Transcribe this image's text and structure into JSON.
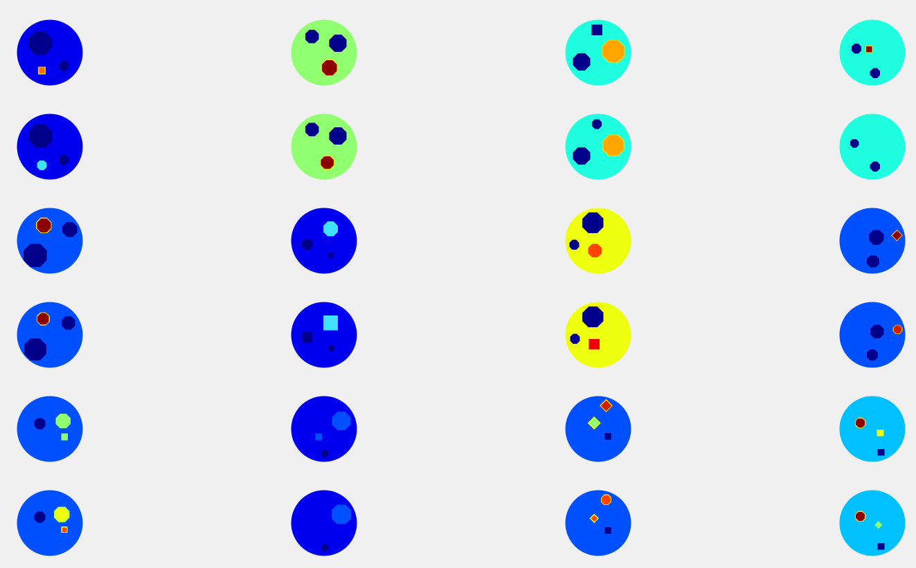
{
  "figure": {
    "rows": 6,
    "cols": 4,
    "panels": [
      {
        "name": "panel-r1-c1",
        "bg": "#0000ee",
        "blobs": [
          {
            "shape": "oct",
            "color": "#00008b",
            "fx": 0.36,
            "fy": 0.36,
            "fr": 0.19
          },
          {
            "shape": "sq",
            "color": "#ff6a00",
            "fx": 0.38,
            "fy": 0.77,
            "fr": 0.05,
            "edge": "#ffd700"
          },
          {
            "shape": "oct",
            "color": "#00008b",
            "fx": 0.71,
            "fy": 0.7,
            "fr": 0.08
          }
        ]
      },
      {
        "name": "panel-r1-c2",
        "bg": "#90ff70",
        "blobs": [
          {
            "shape": "oct",
            "color": "#00008b",
            "fx": 0.32,
            "fy": 0.26,
            "fr": 0.11
          },
          {
            "shape": "oct",
            "color": "#00008b",
            "fx": 0.71,
            "fy": 0.36,
            "fr": 0.14
          },
          {
            "shape": "oct",
            "color": "#8b0000",
            "fx": 0.58,
            "fy": 0.73,
            "fr": 0.13,
            "edge": "#ffd700"
          }
        ]
      },
      {
        "name": "panel-r1-c3",
        "bg": "#1fffe0",
        "blobs": [
          {
            "shape": "sq",
            "color": "#00008b",
            "fx": 0.48,
            "fy": 0.16,
            "fr": 0.08
          },
          {
            "shape": "oct",
            "color": "#ffa500",
            "fx": 0.73,
            "fy": 0.48,
            "fr": 0.18,
            "edge": "#ffd700"
          },
          {
            "shape": "oct",
            "color": "#00008b",
            "fx": 0.25,
            "fy": 0.64,
            "fr": 0.14
          }
        ]
      },
      {
        "name": "panel-r1-c4",
        "bg": "#1fffe0",
        "blobs": [
          {
            "shape": "oct",
            "color": "#00008b",
            "fx": 0.26,
            "fy": 0.44,
            "fr": 0.08
          },
          {
            "shape": "sq",
            "color": "#8b0000",
            "fx": 0.45,
            "fy": 0.45,
            "fr": 0.05,
            "edge": "#ffd700"
          },
          {
            "shape": "oct",
            "color": "#00008b",
            "fx": 0.54,
            "fy": 0.81,
            "fr": 0.08
          }
        ]
      },
      {
        "name": "panel-r2-c1",
        "bg": "#0000ee",
        "blobs": [
          {
            "shape": "oct",
            "color": "#00008b",
            "fx": 0.36,
            "fy": 0.34,
            "fr": 0.19
          },
          {
            "shape": "oct",
            "color": "#40e0ff",
            "fx": 0.38,
            "fy": 0.78,
            "fr": 0.08
          },
          {
            "shape": "oct",
            "color": "#00008b",
            "fx": 0.71,
            "fy": 0.7,
            "fr": 0.08
          }
        ]
      },
      {
        "name": "panel-r2-c2",
        "bg": "#90ff70",
        "blobs": [
          {
            "shape": "oct",
            "color": "#00008b",
            "fx": 0.32,
            "fy": 0.24,
            "fr": 0.11
          },
          {
            "shape": "oct",
            "color": "#00008b",
            "fx": 0.71,
            "fy": 0.34,
            "fr": 0.14
          },
          {
            "shape": "oct",
            "color": "#8b0000",
            "fx": 0.55,
            "fy": 0.74,
            "fr": 0.11,
            "edge": "#ffd700"
          }
        ]
      },
      {
        "name": "panel-r2-c3",
        "bg": "#1fffe0",
        "blobs": [
          {
            "shape": "oct",
            "color": "#00008b",
            "fx": 0.48,
            "fy": 0.16,
            "fr": 0.08
          },
          {
            "shape": "oct",
            "color": "#ffa500",
            "fx": 0.73,
            "fy": 0.48,
            "fr": 0.17,
            "edge": "#ffd700"
          },
          {
            "shape": "oct",
            "color": "#00008b",
            "fx": 0.25,
            "fy": 0.64,
            "fr": 0.14
          }
        ]
      },
      {
        "name": "panel-r2-c4",
        "bg": "#1fffe0",
        "blobs": [
          {
            "shape": "oct",
            "color": "#00008b",
            "fx": 0.23,
            "fy": 0.45,
            "fr": 0.07
          },
          {
            "shape": "oct",
            "color": "#00008b",
            "fx": 0.54,
            "fy": 0.8,
            "fr": 0.08
          }
        ]
      },
      {
        "name": "panel-r3-c1",
        "bg": "#0050ff",
        "blobs": [
          {
            "shape": "oct",
            "color": "#8b0000",
            "fx": 0.41,
            "fy": 0.27,
            "fr": 0.12,
            "edge": "#ffd700"
          },
          {
            "shape": "oct",
            "color": "#00008b",
            "fx": 0.8,
            "fy": 0.33,
            "fr": 0.12
          },
          {
            "shape": "oct",
            "color": "#00008b",
            "fx": 0.28,
            "fy": 0.72,
            "fr": 0.19
          }
        ]
      },
      {
        "name": "panel-r3-c2",
        "bg": "#0000ee",
        "blobs": [
          {
            "shape": "oct",
            "color": "#40e0ff",
            "fx": 0.6,
            "fy": 0.32,
            "fr": 0.12
          },
          {
            "shape": "oct",
            "color": "#00008b",
            "fx": 0.25,
            "fy": 0.55,
            "fr": 0.09
          },
          {
            "shape": "oct",
            "color": "#00008b",
            "fx": 0.6,
            "fy": 0.72,
            "fr": 0.05
          }
        ]
      },
      {
        "name": "panel-r3-c3",
        "bg": "#eeff10",
        "blobs": [
          {
            "shape": "oct",
            "color": "#00008b",
            "fx": 0.42,
            "fy": 0.23,
            "fr": 0.17
          },
          {
            "shape": "oct",
            "color": "#00008b",
            "fx": 0.14,
            "fy": 0.56,
            "fr": 0.08
          },
          {
            "shape": "oct",
            "color": "#ff4500",
            "fx": 0.45,
            "fy": 0.65,
            "fr": 0.11
          }
        ]
      },
      {
        "name": "panel-r3-c4",
        "bg": "#0050ff",
        "blobs": [
          {
            "shape": "oct",
            "color": "#00008b",
            "fx": 0.56,
            "fy": 0.45,
            "fr": 0.12
          },
          {
            "shape": "dia",
            "color": "#8b0000",
            "fx": 0.87,
            "fy": 0.42,
            "fr": 0.08,
            "edge": "#ffa500"
          },
          {
            "shape": "oct",
            "color": "#00008b",
            "fx": 0.51,
            "fy": 0.81,
            "fr": 0.1
          }
        ]
      },
      {
        "name": "panel-r4-c1",
        "bg": "#0050ff",
        "blobs": [
          {
            "shape": "oct",
            "color": "#8b0000",
            "fx": 0.4,
            "fy": 0.26,
            "fr": 0.1,
            "edge": "#ffd700"
          },
          {
            "shape": "oct",
            "color": "#00008b",
            "fx": 0.78,
            "fy": 0.32,
            "fr": 0.11
          },
          {
            "shape": "oct",
            "color": "#00008b",
            "fx": 0.28,
            "fy": 0.72,
            "fr": 0.18
          }
        ]
      },
      {
        "name": "panel-r4-c2",
        "bg": "#0000ee",
        "blobs": [
          {
            "shape": "sq",
            "color": "#40e0ff",
            "fx": 0.6,
            "fy": 0.32,
            "fr": 0.11
          },
          {
            "shape": "sq",
            "color": "#00008b",
            "fx": 0.25,
            "fy": 0.54,
            "fr": 0.08
          },
          {
            "shape": "oct",
            "color": "#00008b",
            "fx": 0.61,
            "fy": 0.7,
            "fr": 0.05
          }
        ]
      },
      {
        "name": "panel-r4-c3",
        "bg": "#eeff10",
        "blobs": [
          {
            "shape": "oct",
            "color": "#00008b",
            "fx": 0.42,
            "fy": 0.23,
            "fr": 0.17
          },
          {
            "shape": "oct",
            "color": "#00008b",
            "fx": 0.15,
            "fy": 0.56,
            "fr": 0.08
          },
          {
            "shape": "sq",
            "color": "#ee0000",
            "fx": 0.44,
            "fy": 0.64,
            "fr": 0.08
          }
        ]
      },
      {
        "name": "panel-r4-c4",
        "bg": "#0050ff",
        "blobs": [
          {
            "shape": "oct",
            "color": "#00008b",
            "fx": 0.57,
            "fy": 0.45,
            "fr": 0.11
          },
          {
            "shape": "oct",
            "color": "#cc2000",
            "fx": 0.88,
            "fy": 0.42,
            "fr": 0.07,
            "edge": "#ffa500"
          },
          {
            "shape": "oct",
            "color": "#00008b",
            "fx": 0.5,
            "fy": 0.8,
            "fr": 0.09
          }
        ]
      },
      {
        "name": "panel-r5-c1",
        "bg": "#0050ff",
        "blobs": [
          {
            "shape": "oct",
            "color": "#00008b",
            "fx": 0.35,
            "fy": 0.42,
            "fr": 0.09
          },
          {
            "shape": "oct",
            "color": "#90ff70",
            "fx": 0.7,
            "fy": 0.38,
            "fr": 0.12
          },
          {
            "shape": "sq",
            "color": "#90ff70",
            "fx": 0.72,
            "fy": 0.62,
            "fr": 0.05
          }
        ]
      },
      {
        "name": "panel-r5-c2",
        "bg": "#0000ee",
        "blobs": [
          {
            "shape": "oct",
            "color": "#0050ff",
            "fx": 0.76,
            "fy": 0.38,
            "fr": 0.15
          },
          {
            "shape": "sq",
            "color": "#0050ff",
            "fx": 0.42,
            "fy": 0.62,
            "fr": 0.05
          },
          {
            "shape": "dia",
            "color": "#00008b",
            "fx": 0.51,
            "fy": 0.87,
            "fr": 0.07
          }
        ]
      },
      {
        "name": "panel-r5-c3",
        "bg": "#0050ff",
        "blobs": [
          {
            "shape": "dia",
            "color": "#cc2000",
            "fx": 0.62,
            "fy": 0.15,
            "fr": 0.09,
            "edge": "#ffd700"
          },
          {
            "shape": "dia",
            "color": "#90ff70",
            "fx": 0.44,
            "fy": 0.41,
            "fr": 0.09,
            "edge": "#ffff00"
          },
          {
            "shape": "sq",
            "color": "#00008b",
            "fx": 0.65,
            "fy": 0.61,
            "fr": 0.05
          }
        ]
      },
      {
        "name": "panel-r5-c4",
        "bg": "#00c0ff",
        "blobs": [
          {
            "shape": "oct",
            "color": "#8b0000",
            "fx": 0.32,
            "fy": 0.41,
            "fr": 0.08,
            "edge": "#ffd700"
          },
          {
            "shape": "sq",
            "color": "#eeff10",
            "fx": 0.62,
            "fy": 0.56,
            "fr": 0.05
          },
          {
            "shape": "sq",
            "color": "#00008b",
            "fx": 0.63,
            "fy": 0.85,
            "fr": 0.05
          }
        ]
      },
      {
        "name": "panel-r6-c1",
        "bg": "#0050ff",
        "blobs": [
          {
            "shape": "oct",
            "color": "#00008b",
            "fx": 0.35,
            "fy": 0.41,
            "fr": 0.09
          },
          {
            "shape": "oct",
            "color": "#eeff10",
            "fx": 0.68,
            "fy": 0.37,
            "fr": 0.12,
            "edge": "#90ff70"
          },
          {
            "shape": "sq",
            "color": "#ff4500",
            "fx": 0.72,
            "fy": 0.6,
            "fr": 0.04,
            "edge": "#ffff00"
          }
        ]
      },
      {
        "name": "panel-r6-c2",
        "bg": "#0000ee",
        "blobs": [
          {
            "shape": "oct",
            "color": "#0050ff",
            "fx": 0.76,
            "fy": 0.37,
            "fr": 0.16
          },
          {
            "shape": "dia",
            "color": "#00008b",
            "fx": 0.51,
            "fy": 0.87,
            "fr": 0.07
          }
        ]
      },
      {
        "name": "panel-r6-c3",
        "bg": "#0050ff",
        "blobs": [
          {
            "shape": "oct",
            "color": "#ff4500",
            "fx": 0.62,
            "fy": 0.15,
            "fr": 0.08,
            "edge": "#ffd700"
          },
          {
            "shape": "dia",
            "color": "#ff4500",
            "fx": 0.44,
            "fy": 0.43,
            "fr": 0.06,
            "edge": "#ffff00"
          },
          {
            "shape": "sq",
            "color": "#00008b",
            "fx": 0.65,
            "fy": 0.61,
            "fr": 0.05
          }
        ]
      },
      {
        "name": "panel-r6-c4",
        "bg": "#00c0ff",
        "blobs": [
          {
            "shape": "oct",
            "color": "#8b0000",
            "fx": 0.32,
            "fy": 0.4,
            "fr": 0.08,
            "edge": "#ffd700"
          },
          {
            "shape": "dia",
            "color": "#90ff70",
            "fx": 0.59,
            "fy": 0.53,
            "fr": 0.06
          },
          {
            "shape": "sq",
            "color": "#00008b",
            "fx": 0.63,
            "fy": 0.85,
            "fr": 0.05
          }
        ]
      }
    ]
  }
}
